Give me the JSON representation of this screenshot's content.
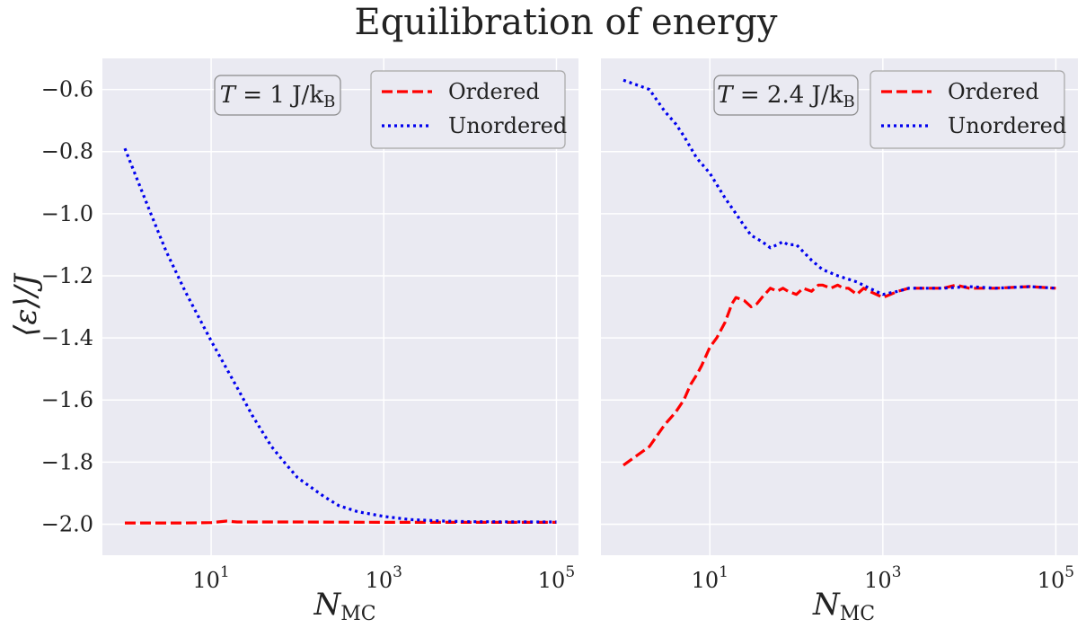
{
  "figure_title": "Equilibration of energy",
  "colors": {
    "background": "#eaeaf2",
    "grid": "#ffffff",
    "ordered": "#ff0000",
    "unordered": "#0000ee"
  },
  "chart_data": [
    {
      "type": "line",
      "annotation": "T = 1 J/k_B",
      "xlabel": "N_MC",
      "ylabel": "⟨ε⟩/J",
      "xscale": "log",
      "xlim": [
        0.55,
        180000
      ],
      "ylim": [
        -2.1,
        -0.5
      ],
      "xticks": [
        10,
        1000,
        100000
      ],
      "xtick_labels": [
        {
          "base": "10",
          "exp": "1"
        },
        {
          "base": "10",
          "exp": "3"
        },
        {
          "base": "10",
          "exp": "5"
        }
      ],
      "yticks": [
        -2.0,
        -1.8,
        -1.6,
        -1.4,
        -1.2,
        -1.0,
        -0.8,
        -0.6
      ],
      "ytick_labels": [
        "−2.0",
        "−1.8",
        "−1.6",
        "−1.4",
        "−1.2",
        "−1.0",
        "−0.8",
        "−0.6"
      ],
      "grid": true,
      "legend_position": "top-right",
      "series": [
        {
          "name": "Ordered",
          "color": "#ff0000",
          "style": "dashed",
          "x": [
            1,
            2,
            5,
            10,
            15,
            20,
            50,
            100,
            1000,
            10000,
            100000
          ],
          "y": [
            -1.996,
            -1.996,
            -1.996,
            -1.995,
            -1.99,
            -1.993,
            -1.993,
            -1.993,
            -1.994,
            -1.994,
            -1.994
          ]
        },
        {
          "name": "Unordered",
          "color": "#0000ee",
          "style": "dotted",
          "x": [
            1,
            2,
            3,
            5,
            10,
            20,
            30,
            50,
            70,
            100,
            200,
            300,
            500,
            1000,
            2000,
            5000,
            10000,
            100000
          ],
          "y": [
            -0.79,
            -1.0,
            -1.12,
            -1.25,
            -1.41,
            -1.56,
            -1.65,
            -1.75,
            -1.8,
            -1.85,
            -1.91,
            -1.94,
            -1.96,
            -1.975,
            -1.985,
            -1.99,
            -1.992,
            -1.993
          ]
        }
      ]
    },
    {
      "type": "line",
      "annotation": "T = 2.4 J/k_B",
      "xlabel": "N_MC",
      "ylabel": "",
      "xscale": "log",
      "xlim": [
        0.55,
        180000
      ],
      "ylim": [
        -2.1,
        -0.5
      ],
      "xticks": [
        10,
        1000,
        100000
      ],
      "xtick_labels": [
        {
          "base": "10",
          "exp": "1"
        },
        {
          "base": "10",
          "exp": "3"
        },
        {
          "base": "10",
          "exp": "5"
        }
      ],
      "yticks": [
        -2.0,
        -1.8,
        -1.6,
        -1.4,
        -1.2,
        -1.0,
        -0.8,
        -0.6
      ],
      "grid": true,
      "legend_position": "top-right",
      "series": [
        {
          "name": "Ordered",
          "color": "#ff0000",
          "style": "dashed",
          "x": [
            1,
            2,
            3,
            4,
            5,
            6,
            7,
            8,
            10,
            12,
            15,
            18,
            20,
            25,
            30,
            35,
            40,
            50,
            60,
            70,
            80,
            100,
            120,
            150,
            180,
            200,
            250,
            300,
            350,
            400,
            500,
            600,
            700,
            1000,
            1500,
            2000,
            3000,
            5000,
            7000,
            10000,
            20000,
            50000,
            100000
          ],
          "y": [
            -1.81,
            -1.75,
            -1.68,
            -1.64,
            -1.6,
            -1.55,
            -1.52,
            -1.49,
            -1.43,
            -1.4,
            -1.35,
            -1.29,
            -1.27,
            -1.28,
            -1.3,
            -1.29,
            -1.27,
            -1.24,
            -1.25,
            -1.24,
            -1.25,
            -1.26,
            -1.24,
            -1.25,
            -1.23,
            -1.23,
            -1.24,
            -1.23,
            -1.24,
            -1.24,
            -1.26,
            -1.24,
            -1.25,
            -1.27,
            -1.25,
            -1.24,
            -1.24,
            -1.24,
            -1.23,
            -1.24,
            -1.24,
            -1.235,
            -1.24
          ]
        },
        {
          "name": "Unordered",
          "color": "#0000ee",
          "style": "dotted",
          "x": [
            1,
            2,
            3,
            4,
            5,
            7,
            10,
            15,
            20,
            25,
            30,
            40,
            50,
            60,
            70,
            80,
            100,
            150,
            200,
            300,
            500,
            700,
            1000,
            1500,
            2000,
            3000,
            5000,
            10000,
            20000,
            50000,
            100000
          ],
          "y": [
            -0.57,
            -0.6,
            -0.67,
            -0.71,
            -0.75,
            -0.82,
            -0.87,
            -0.95,
            -1.0,
            -1.04,
            -1.07,
            -1.09,
            -1.11,
            -1.1,
            -1.09,
            -1.1,
            -1.1,
            -1.15,
            -1.18,
            -1.2,
            -1.22,
            -1.24,
            -1.26,
            -1.25,
            -1.24,
            -1.24,
            -1.24,
            -1.235,
            -1.24,
            -1.235,
            -1.24
          ]
        }
      ]
    }
  ]
}
